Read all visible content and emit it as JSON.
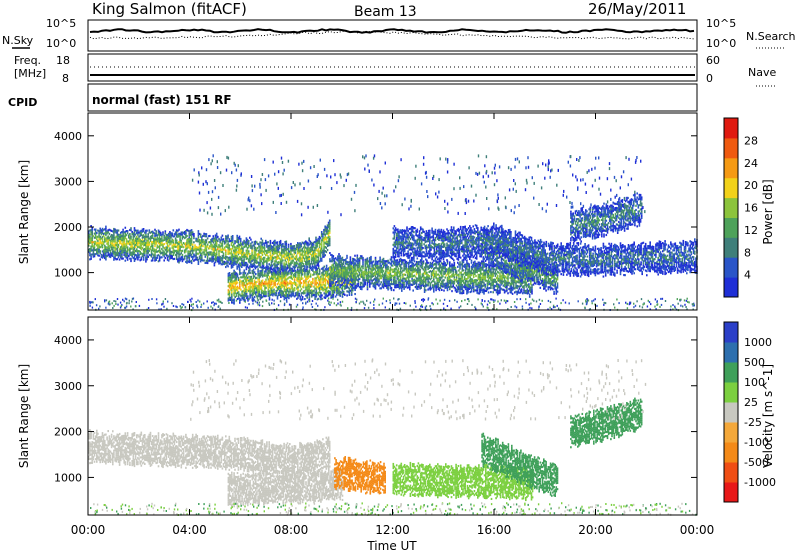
{
  "header": {
    "station": "King Salmon (fitACF)",
    "beam": "Beam 13",
    "date": "26/May/2011"
  },
  "noise_panel": {
    "left_label": "N.Sky",
    "right_label": "N.Search",
    "left_ticks": [
      "10^5",
      "10^0"
    ],
    "right_ticks": [
      "10^5",
      "10^0"
    ]
  },
  "freq_panel": {
    "left_label_line1": "Freq.",
    "left_label_line2": "[MHz]",
    "right_label": "Nave",
    "left_ticks": [
      "18",
      "8"
    ],
    "right_ticks": [
      "60",
      "0"
    ]
  },
  "cpid_panel": {
    "label": "CPID",
    "text": "normal (fast) 151 RF"
  },
  "colors": {
    "power": [
      "#1f2fd6",
      "#2a55c8",
      "#3f7f7a",
      "#4ea25a",
      "#8cc43c",
      "#f2d21a",
      "#f59a14",
      "#ef5a10",
      "#e01a10"
    ],
    "velocity": [
      "#e81818",
      "#f04e14",
      "#f48a18",
      "#f4a83a",
      "#c8c8c0",
      "#7cd040",
      "#3fa05a",
      "#2d6fae",
      "#2b3fc8"
    ]
  },
  "chart_data": [
    {
      "type": "heatmap",
      "panel": "power",
      "ylabel": "Slant Range [km]",
      "yticks": [
        "4000",
        "3000",
        "2000",
        "1000"
      ],
      "ylim": [
        180,
        4500
      ],
      "xlim": [
        "00:00",
        "24:00"
      ],
      "colorbar_label": "Power [dB]",
      "colorbar_ticks": [
        "28",
        "24",
        "20",
        "16",
        "12",
        "8",
        "4"
      ],
      "colorbar_range": [
        0,
        32
      ],
      "bands": [
        {
          "x": [
            0,
            1,
            2,
            3,
            4,
            5,
            6,
            7,
            8,
            9,
            9.5
          ],
          "y": [
            1650,
            1620,
            1600,
            1580,
            1560,
            1500,
            1420,
            1350,
            1300,
            1400,
            1850
          ],
          "value": 18
        },
        {
          "x": [
            5.5,
            6.5,
            7.5,
            8.5,
            9.5,
            10.5
          ],
          "y": [
            650,
            720,
            750,
            760,
            780,
            860
          ],
          "value": 22
        },
        {
          "x": [
            9.5,
            10.5,
            11.5,
            12.5,
            13.5,
            14.5,
            15.5,
            16.5,
            17.5
          ],
          "y": [
            1050,
            1000,
            980,
            950,
            920,
            900,
            880,
            860,
            820
          ],
          "value": 15
        },
        {
          "x": [
            15.5,
            16.5,
            17.5,
            18.5
          ],
          "y": [
            1600,
            1300,
            1050,
            850
          ],
          "value": 14
        },
        {
          "x": [
            12,
            14,
            16,
            18,
            20,
            22,
            24
          ],
          "y": [
            1650,
            1600,
            1700,
            1300,
            1250,
            1300,
            1350
          ],
          "value": 8
        },
        {
          "x": [
            19,
            20,
            21,
            21.8
          ],
          "y": [
            2000,
            2100,
            2250,
            2400
          ],
          "value": 10
        }
      ]
    },
    {
      "type": "heatmap",
      "panel": "velocity",
      "ylabel": "Slant Range [km]",
      "yticks": [
        "4000",
        "3000",
        "2000",
        "1000"
      ],
      "ylim": [
        180,
        4500
      ],
      "xlim": [
        "00:00",
        "24:00"
      ],
      "xticks": [
        "00:00",
        "04:00",
        "08:00",
        "12:00",
        "16:00",
        "20:00",
        "00:00"
      ],
      "xlabel": "Time UT",
      "colorbar_label": "Velocity [m s^-1]",
      "colorbar_ticks": [
        "1000",
        "500",
        "100",
        "25",
        "-25",
        "-100",
        "-500",
        "-1000"
      ],
      "bands": [
        {
          "x": [
            0,
            2,
            4,
            6,
            8,
            9.5
          ],
          "y": [
            1650,
            1600,
            1560,
            1500,
            1350,
            1500
          ],
          "value": 0
        },
        {
          "x": [
            5.5,
            7,
            8.5,
            10
          ],
          "y": [
            720,
            760,
            780,
            850
          ],
          "value": 0
        },
        {
          "x": [
            9.7,
            10.3,
            11,
            11.7
          ],
          "y": [
            1100,
            1050,
            1000,
            980
          ],
          "value": -300
        },
        {
          "x": [
            12,
            13.5,
            15,
            16.5,
            17.5
          ],
          "y": [
            950,
            920,
            900,
            880,
            850
          ],
          "value": 60
        },
        {
          "x": [
            15.5,
            16.5,
            17.5,
            18.5
          ],
          "y": [
            1600,
            1350,
            1100,
            900
          ],
          "value": 200
        },
        {
          "x": [
            19,
            20,
            21,
            21.8
          ],
          "y": [
            2000,
            2100,
            2250,
            2400
          ],
          "value": 200
        }
      ]
    }
  ]
}
